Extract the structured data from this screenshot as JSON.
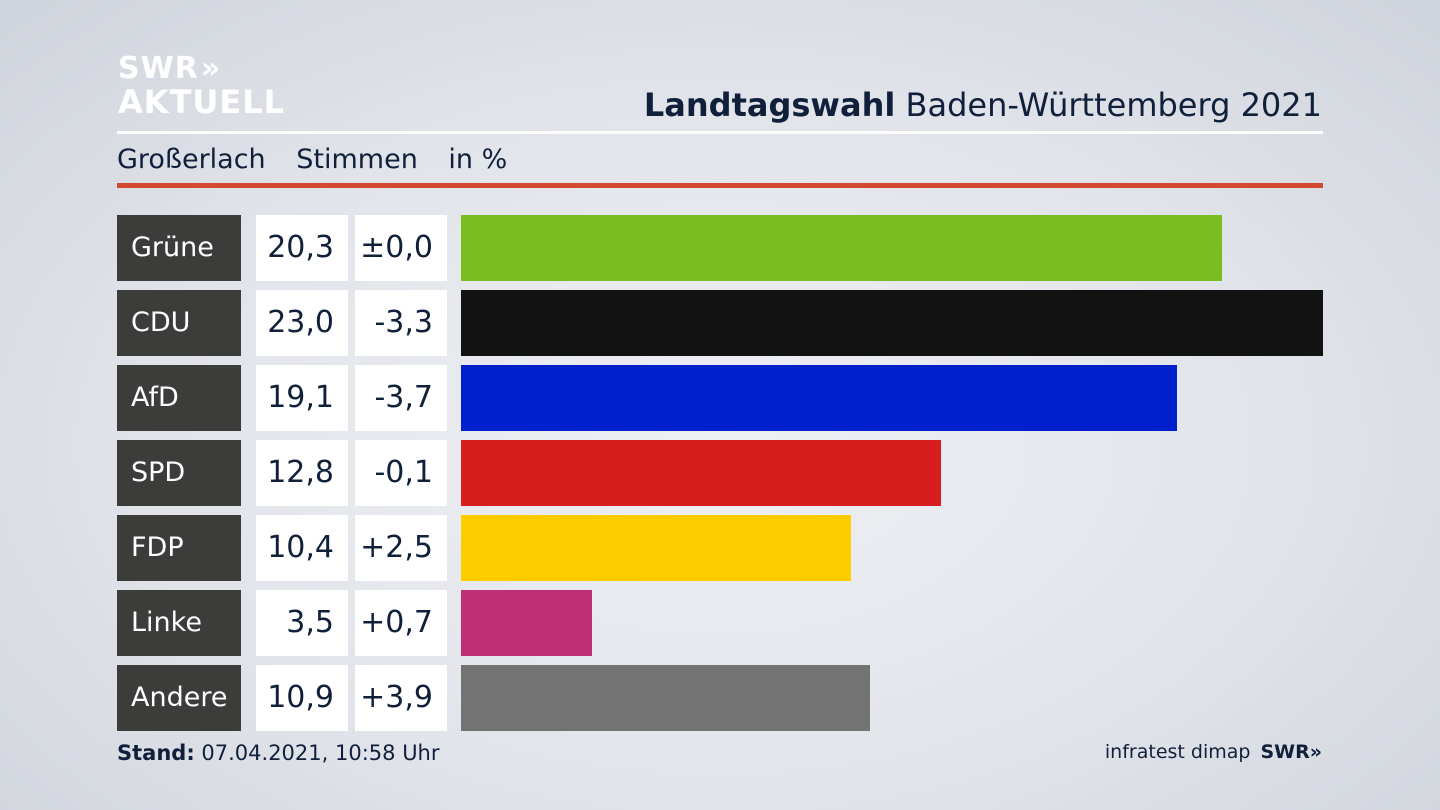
{
  "logo": {
    "line1": "SWR",
    "line1_arrows": "»",
    "line2": "AKTUELL"
  },
  "header": {
    "title_bold": "Landtagswahl",
    "title_rest": "Baden-Württemberg 2021"
  },
  "subheader": {
    "place": "Großerlach",
    "measure": "Stimmen",
    "unit": "in %"
  },
  "chart_data": {
    "type": "bar",
    "orientation": "horizontal",
    "categories": [
      "Grüne",
      "CDU",
      "AfD",
      "SPD",
      "FDP",
      "Linke",
      "Andere"
    ],
    "values": [
      20.3,
      23.0,
      19.1,
      12.8,
      10.4,
      3.5,
      10.9
    ],
    "value_labels": [
      "20,3",
      "23,0",
      "19,1",
      "12,8",
      "10,4",
      "3,5",
      "10,9"
    ],
    "change_labels": [
      "±0,0",
      "-3,3",
      "-3,7",
      "-0,1",
      "+2,5",
      "+0,7",
      "+3,9"
    ],
    "changes": [
      0.0,
      -3.3,
      -3.7,
      -0.1,
      2.5,
      0.7,
      3.9
    ],
    "colors": [
      "#79bd1e",
      "#121212",
      "#0020cc",
      "#d61e1e",
      "#ffcc00",
      "#bf2f75",
      "#737373"
    ],
    "xlim": [
      0,
      23.0
    ],
    "grid": false,
    "legend": "none"
  },
  "footer": {
    "stand_label": "Stand:",
    "stand_value": "07.04.2021, 10:58 Uhr",
    "source": "infratest dimap",
    "brand": "SWR»"
  },
  "colors": {
    "accent_rule": "#d2492f",
    "label_bg": "#3c3c3a",
    "text": "#10203a"
  }
}
